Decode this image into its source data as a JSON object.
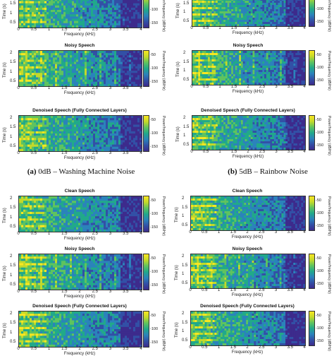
{
  "labels": {
    "x_axis": "Frequency (kHz)",
    "y_axis": "Time (s)",
    "colorbar": "Power/frequency (dB/Hz)",
    "x_ticks": [
      "0",
      "0.5",
      "1",
      "1.5",
      "2",
      "2.5",
      "3",
      "3.5",
      "4"
    ],
    "y_ticks": [
      "0.5",
      "1",
      "1.5",
      "2"
    ],
    "colorbar_ticks": [
      "-50",
      "-100",
      "-150"
    ]
  },
  "colors": {
    "low": "#3d2b8c",
    "mid": "#21a98a",
    "high": "#f9e721"
  },
  "groups": [
    {
      "letter": "(a)",
      "caption": "0dB – Washing Machine Noise",
      "panels": [
        {
          "title": ""
        },
        {
          "title": "Noisy Speech"
        },
        {
          "title": "Denoised Speech (Fully Connected Layers)"
        }
      ]
    },
    {
      "letter": "(b)",
      "caption": "5dB – Rainbow Noise",
      "panels": [
        {
          "title": ""
        },
        {
          "title": "Noisy Speech"
        },
        {
          "title": "Denoised Speech (Fully Connected Layers)"
        }
      ]
    },
    {
      "letter": "",
      "caption": "",
      "panels": [
        {
          "title": "Clean Speech"
        },
        {
          "title": "Noisy Speech"
        },
        {
          "title": "Denoised Speech (Fully Connected Layers)"
        }
      ]
    },
    {
      "letter": "",
      "caption": "",
      "panels": [
        {
          "title": "Clean Speech"
        },
        {
          "title": "Noisy Speech"
        },
        {
          "title": "Denoised Speech (Fully Connected Layers)"
        }
      ]
    }
  ]
}
